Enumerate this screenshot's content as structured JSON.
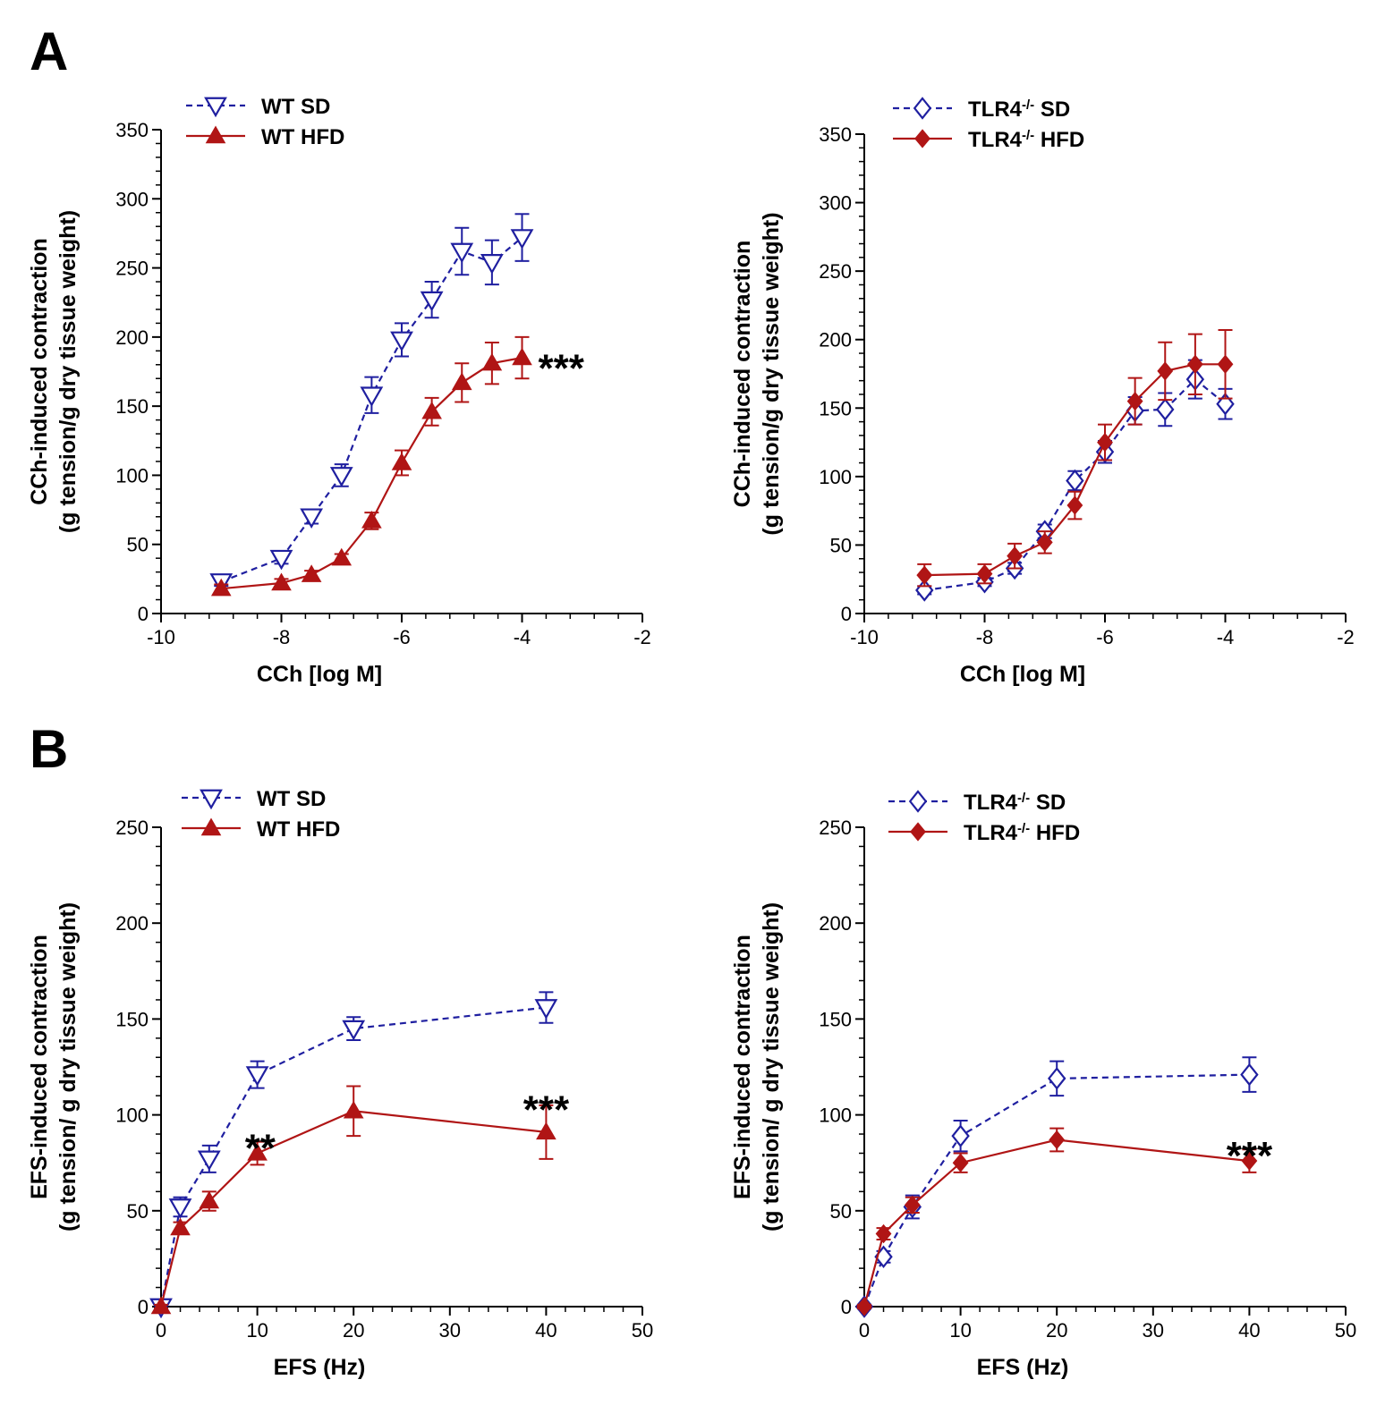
{
  "panel_letters": [
    "A",
    "B"
  ],
  "colors": {
    "sd": "#1f1fa0",
    "hfd": "#b01515",
    "axis": "#000000"
  },
  "chart_data": [
    {
      "type": "line",
      "id": "A-left",
      "xlabel": "CCh [log M]",
      "ylabel": [
        "CCh-induced contraction",
        "(g tension/g dry tissue weight)"
      ],
      "xlim": [
        -10,
        -2
      ],
      "ylim": [
        0,
        350
      ],
      "xticks": [
        -10,
        -8,
        -6,
        -4,
        -2
      ],
      "yticks": [
        0,
        50,
        100,
        150,
        200,
        250,
        300,
        350
      ],
      "legend": "top-left",
      "series": [
        {
          "name": "WT SD",
          "marker": "triangle-down-open",
          "style": "dashed",
          "color": "#1f1fa0",
          "x": [
            -9,
            -8,
            -7.5,
            -7,
            -6.5,
            -6,
            -5.5,
            -5,
            -4.5,
            -4
          ],
          "y": [
            23,
            40,
            70,
            100,
            158,
            198,
            227,
            262,
            254,
            272
          ],
          "err": [
            3,
            4,
            5,
            8,
            13,
            12,
            13,
            17,
            16,
            17
          ]
        },
        {
          "name": "WT HFD",
          "marker": "triangle-up-filled",
          "style": "solid",
          "color": "#b01515",
          "x": [
            -9,
            -8,
            -7.5,
            -7,
            -6.5,
            -6,
            -5.5,
            -5,
            -4.5,
            -4
          ],
          "y": [
            18,
            22,
            28,
            40,
            67,
            109,
            146,
            167,
            181,
            185
          ],
          "err": [
            3,
            3,
            3,
            3,
            6,
            9,
            10,
            14,
            15,
            15
          ]
        }
      ],
      "annotations": [
        {
          "text": "***",
          "x": -3.35,
          "y": 182
        }
      ]
    },
    {
      "type": "line",
      "id": "A-right",
      "xlabel": "CCh [log M]",
      "ylabel": [
        "CCh-induced contraction",
        "(g tension/g dry tissue weight)"
      ],
      "xlim": [
        -10,
        -2
      ],
      "ylim": [
        0,
        350
      ],
      "xticks": [
        -10,
        -8,
        -6,
        -4,
        -2
      ],
      "yticks": [
        0,
        50,
        100,
        150,
        200,
        250,
        300,
        350
      ],
      "legend": "top-left",
      "series": [
        {
          "name": "TLR4-/- SD",
          "marker": "diamond-open",
          "style": "dashed",
          "color": "#1f1fa0",
          "x": [
            -9,
            -8,
            -7.5,
            -7,
            -6.5,
            -6,
            -5.5,
            -5,
            -4.5,
            -4
          ],
          "y": [
            17,
            23,
            33,
            60,
            97,
            118,
            148,
            149,
            171,
            153
          ],
          "err": [
            3,
            3,
            4,
            5,
            7,
            8,
            10,
            12,
            14,
            11
          ]
        },
        {
          "name": "TLR4-/- HFD",
          "marker": "diamond-filled",
          "style": "solid",
          "color": "#b01515",
          "x": [
            -9,
            -8,
            -7.5,
            -7,
            -6.5,
            -6,
            -5.5,
            -5,
            -4.5,
            -4
          ],
          "y": [
            28,
            29,
            42,
            52,
            79,
            125,
            155,
            177,
            182,
            182
          ],
          "err": [
            8,
            7,
            9,
            8,
            10,
            13,
            17,
            21,
            22,
            25
          ]
        }
      ],
      "annotations": []
    },
    {
      "type": "line",
      "id": "B-left",
      "xlabel": "EFS (Hz)",
      "ylabel": [
        "EFS-induced contraction",
        "(g tension/ g dry tissue weight)"
      ],
      "xlim": [
        0,
        50
      ],
      "ylim": [
        0,
        250
      ],
      "xticks": [
        0,
        10,
        20,
        30,
        40,
        50
      ],
      "yticks": [
        0,
        50,
        100,
        150,
        200,
        250
      ],
      "legend": "top-left",
      "series": [
        {
          "name": "WT SD",
          "marker": "triangle-down-open",
          "style": "dashed",
          "color": "#1f1fa0",
          "x": [
            0,
            2,
            5,
            10,
            20,
            40
          ],
          "y": [
            0,
            52,
            77,
            121,
            145,
            156
          ],
          "err": [
            1,
            5,
            7,
            7,
            6,
            8
          ]
        },
        {
          "name": "WT HFD",
          "marker": "triangle-up-filled",
          "style": "solid",
          "color": "#b01515",
          "x": [
            0,
            2,
            5,
            10,
            20,
            40
          ],
          "y": [
            0,
            41,
            55,
            80,
            102,
            91
          ],
          "err": [
            1,
            3,
            5,
            6,
            13,
            14
          ]
        }
      ],
      "annotations": [
        {
          "text": "**",
          "x": 10.3,
          "y": 86
        },
        {
          "text": "***",
          "x": 40,
          "y": 106
        }
      ]
    },
    {
      "type": "line",
      "id": "B-right",
      "xlabel": "EFS (Hz)",
      "ylabel": [
        "EFS-induced contraction",
        "(g tension/ g dry tissue weight)"
      ],
      "xlim": [
        0,
        50
      ],
      "ylim": [
        0,
        250
      ],
      "xticks": [
        0,
        10,
        20,
        30,
        40,
        50
      ],
      "yticks": [
        0,
        50,
        100,
        150,
        200,
        250
      ],
      "legend": "top-left",
      "series": [
        {
          "name": "TLR4-/- SD",
          "marker": "diamond-open",
          "style": "dashed",
          "color": "#1f1fa0",
          "x": [
            0,
            2,
            5,
            10,
            20,
            40
          ],
          "y": [
            0,
            26,
            52,
            89,
            119,
            121
          ],
          "err": [
            1,
            3,
            6,
            8,
            9,
            9
          ]
        },
        {
          "name": "TLR4-/- HFD",
          "marker": "diamond-filled",
          "style": "solid",
          "color": "#b01515",
          "x": [
            0,
            2,
            5,
            10,
            20,
            40
          ],
          "y": [
            0,
            38,
            53,
            75,
            87,
            76
          ],
          "err": [
            1,
            3,
            4,
            5,
            6,
            6
          ]
        }
      ],
      "annotations": [
        {
          "text": "***",
          "x": 40,
          "y": 82
        }
      ]
    }
  ]
}
